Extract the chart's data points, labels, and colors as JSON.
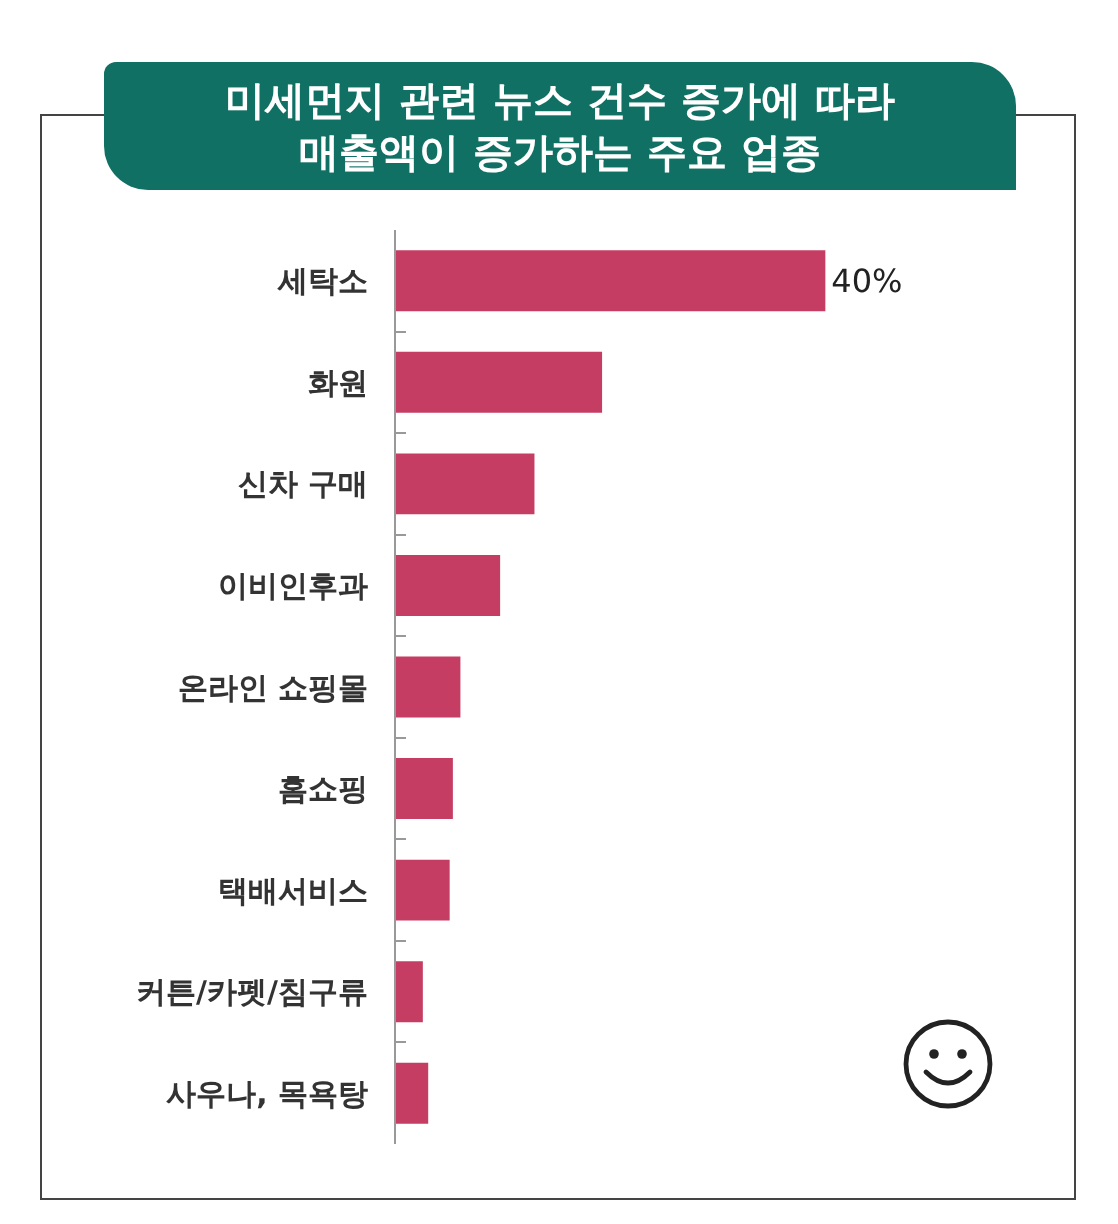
{
  "chart_data": {
    "type": "bar",
    "orientation": "horizontal",
    "title": "미세먼지 관련 뉴스 건수 증가에 따라 매출액이 증가하는 주요 업종",
    "categories": [
      "세탁소",
      "화원",
      "신차 구매",
      "이비인후과",
      "온라인 쇼핑몰",
      "홈쇼핑",
      "택배서비스",
      "커튼/카펫/침구류",
      "사우나, 목욕탕"
    ],
    "values": [
      40,
      19.2,
      12.9,
      9.7,
      6,
      5.3,
      5,
      2.5,
      3
    ],
    "value_labels": [
      "40%",
      null,
      null,
      null,
      null,
      null,
      null,
      null,
      null
    ],
    "color": "#c53d62",
    "tick_labels": "y"
  }
}
